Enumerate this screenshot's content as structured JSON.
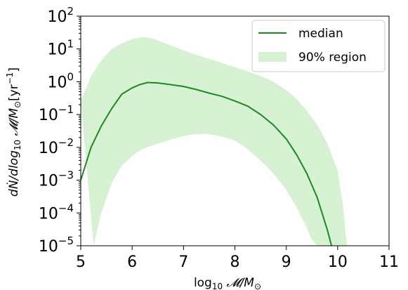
{
  "chart_data": {
    "type": "area",
    "title": "",
    "xlabel": {
      "pre": "log",
      "sub": "10",
      "post": " 𝓜/M",
      "post_sub": "⊙"
    },
    "ylabel": {
      "a": "dṄ/dlog",
      "a_sub": "10",
      "b": " 𝓜/M",
      "b_sub": "⊙",
      "c": "[yr",
      "c_sup": "−1",
      "d": "]"
    },
    "xlim": [
      5,
      11
    ],
    "ylim_log10": [
      -5,
      2
    ],
    "yscale": "log",
    "grid": false,
    "legend_position": "top-right",
    "x_ticks": [
      "5",
      "6",
      "7",
      "8",
      "9",
      "10",
      "11"
    ],
    "y_ticks": [
      {
        "base": "10",
        "exp": "2"
      },
      {
        "base": "10",
        "exp": "1"
      },
      {
        "base": "10",
        "exp": "0"
      },
      {
        "base": "10",
        "exp": "−1"
      },
      {
        "base": "10",
        "exp": "−2"
      },
      {
        "base": "10",
        "exp": "−3"
      },
      {
        "base": "10",
        "exp": "−4"
      },
      {
        "base": "10",
        "exp": "−5"
      }
    ],
    "series": [
      {
        "name": "median",
        "kind": "line",
        "color": "#1e8a1e",
        "x": [
          5.0,
          5.2,
          5.4,
          5.6,
          5.8,
          6.0,
          6.15,
          6.3,
          6.5,
          6.75,
          7.0,
          7.25,
          7.5,
          7.75,
          8.0,
          8.25,
          8.5,
          8.75,
          9.0,
          9.2,
          9.4,
          9.6,
          9.8,
          9.88
        ],
        "y": [
          0.001,
          0.01,
          0.045,
          0.15,
          0.42,
          0.65,
          0.82,
          0.95,
          0.92,
          0.82,
          0.72,
          0.58,
          0.45,
          0.36,
          0.26,
          0.18,
          0.1,
          0.048,
          0.018,
          0.006,
          0.0016,
          0.0003,
          3e-05,
          1e-05
        ]
      },
      {
        "name": "90% region",
        "kind": "band",
        "color": "#d6f2d3",
        "upper_x": [
          5.0,
          5.2,
          5.4,
          5.6,
          5.8,
          6.0,
          6.2,
          6.4,
          6.6,
          6.8,
          7.0,
          7.2,
          7.4,
          7.6,
          7.8,
          8.0,
          8.2,
          8.4,
          8.6,
          8.8,
          9.0,
          9.2,
          9.4,
          9.6,
          9.8,
          10.0,
          10.1,
          10.18
        ],
        "upper_y": [
          0.25,
          1.5,
          4.5,
          10,
          15,
          20,
          23,
          21,
          16,
          12,
          9,
          7,
          5.5,
          4.5,
          3.5,
          2.8,
          2.2,
          1.7,
          1.3,
          0.9,
          0.55,
          0.3,
          0.13,
          0.05,
          0.013,
          0.002,
          0.0002,
          1e-05
        ],
        "lower_x": [
          5.25,
          5.4,
          5.6,
          5.8,
          6.0,
          6.2,
          6.5,
          6.8,
          7.0,
          7.2,
          7.4,
          7.6,
          7.8,
          8.0,
          8.2,
          8.4,
          8.6,
          8.8,
          9.0,
          9.2,
          9.35,
          9.5,
          9.6
        ],
        "lower_y": [
          1e-05,
          0.0001,
          0.0008,
          0.0028,
          0.0055,
          0.009,
          0.013,
          0.018,
          0.022,
          0.025,
          0.026,
          0.024,
          0.02,
          0.016,
          0.01,
          0.0055,
          0.0028,
          0.0013,
          0.0005,
          0.00015,
          5e-05,
          1.5e-05,
          1e-05
        ]
      }
    ]
  }
}
